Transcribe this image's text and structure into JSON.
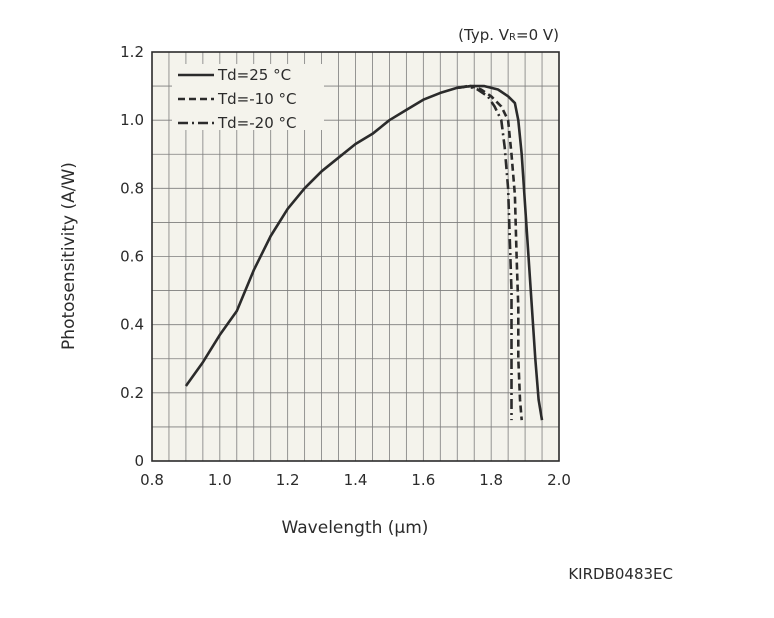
{
  "chart_data": {
    "type": "line",
    "condition_prefix": "(Typ. V",
    "condition_subscript": "R",
    "condition_suffix": "=0 V)",
    "xlabel": "Wavelength (µm)",
    "ylabel": "Photosensitivity (A/W)",
    "xlim": [
      0.8,
      2.0
    ],
    "ylim": [
      0,
      1.2
    ],
    "grid": true,
    "legend_position": "top-left",
    "x_major_ticks": [
      0.8,
      1.0,
      1.2,
      1.4,
      1.6,
      1.8,
      2.0
    ],
    "x_tick_labels": [
      "0.8",
      "1.0",
      "1.2",
      "1.4",
      "1.6",
      "1.8",
      "2.0"
    ],
    "y_major_ticks": [
      0,
      0.2,
      0.4,
      0.6,
      0.8,
      1.0,
      1.2
    ],
    "y_tick_labels": [
      "0",
      "0.2",
      "0.4",
      "0.6",
      "0.8",
      "1.0",
      "1.2"
    ],
    "series": [
      {
        "name": "Td=25 °C",
        "style": "solid",
        "points": [
          [
            0.9,
            0.22
          ],
          [
            0.95,
            0.29
          ],
          [
            1.0,
            0.37
          ],
          [
            1.05,
            0.44
          ],
          [
            1.1,
            0.56
          ],
          [
            1.15,
            0.66
          ],
          [
            1.2,
            0.74
          ],
          [
            1.25,
            0.8
          ],
          [
            1.3,
            0.85
          ],
          [
            1.35,
            0.89
          ],
          [
            1.4,
            0.93
          ],
          [
            1.45,
            0.96
          ],
          [
            1.5,
            1.0
          ],
          [
            1.55,
            1.03
          ],
          [
            1.6,
            1.06
          ],
          [
            1.65,
            1.08
          ],
          [
            1.7,
            1.095
          ],
          [
            1.74,
            1.1
          ],
          [
            1.78,
            1.1
          ],
          [
            1.82,
            1.09
          ],
          [
            1.85,
            1.07
          ],
          [
            1.87,
            1.05
          ],
          [
            1.88,
            1.0
          ],
          [
            1.89,
            0.9
          ],
          [
            1.9,
            0.75
          ],
          [
            1.91,
            0.6
          ],
          [
            1.92,
            0.45
          ],
          [
            1.93,
            0.3
          ],
          [
            1.94,
            0.18
          ],
          [
            1.95,
            0.12
          ]
        ]
      },
      {
        "name": "Td=-10 °C",
        "style": "dashed",
        "points": [
          [
            1.7,
            1.095
          ],
          [
            1.74,
            1.1
          ],
          [
            1.77,
            1.09
          ],
          [
            1.8,
            1.07
          ],
          [
            1.83,
            1.04
          ],
          [
            1.85,
            1.0
          ],
          [
            1.86,
            0.9
          ],
          [
            1.87,
            0.78
          ],
          [
            1.875,
            0.6
          ],
          [
            1.88,
            0.45
          ],
          [
            1.88,
            0.3
          ],
          [
            1.885,
            0.18
          ],
          [
            1.89,
            0.12
          ]
        ]
      },
      {
        "name": "Td=-20 °C",
        "style": "dashdot",
        "points": [
          [
            1.7,
            1.095
          ],
          [
            1.73,
            1.1
          ],
          [
            1.76,
            1.09
          ],
          [
            1.79,
            1.07
          ],
          [
            1.81,
            1.04
          ],
          [
            1.83,
            1.0
          ],
          [
            1.84,
            0.92
          ],
          [
            1.85,
            0.8
          ],
          [
            1.855,
            0.65
          ],
          [
            1.86,
            0.5
          ],
          [
            1.86,
            0.35
          ],
          [
            1.86,
            0.22
          ],
          [
            1.86,
            0.12
          ]
        ]
      }
    ]
  },
  "drawing_code": "KIRDB0483EC",
  "colors": {
    "plot_background": "#f4f3ec",
    "grid": "#7d7d7d",
    "frame": "#2b2b2b",
    "curve": "#2b2b2b"
  }
}
